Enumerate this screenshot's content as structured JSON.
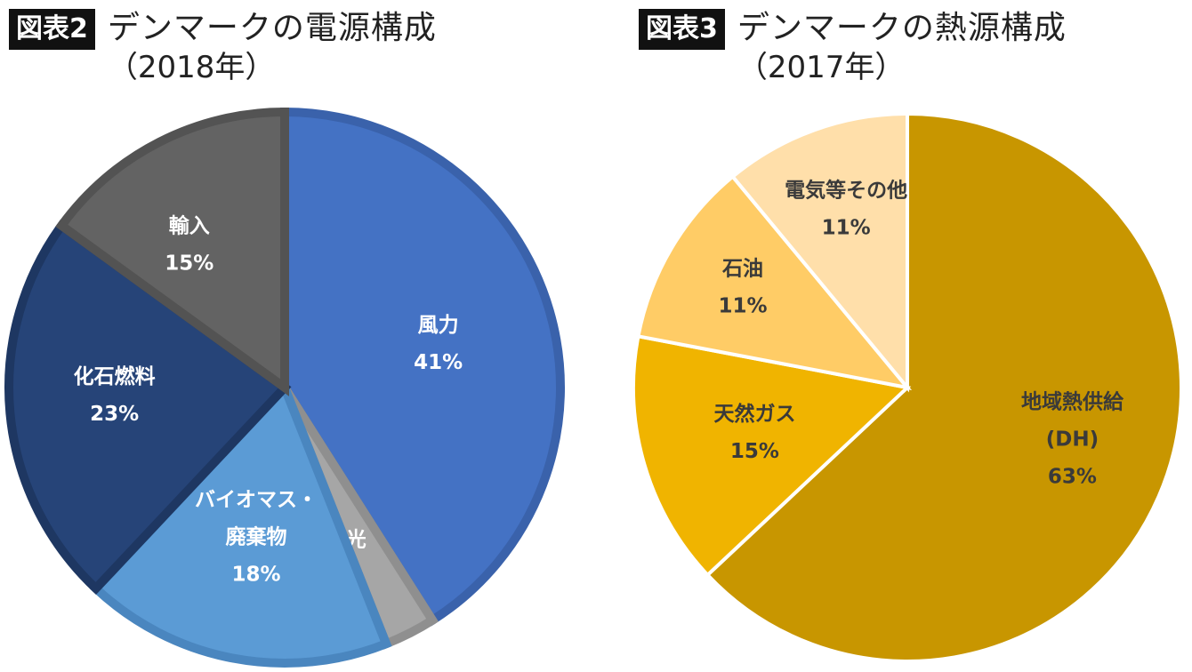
{
  "chart_data": [
    {
      "type": "pie",
      "badge": "図表2",
      "title": "デンマークの電源構成",
      "subtitle": "（2018年）",
      "slices": [
        {
          "label": "風力",
          "value": 41,
          "pct": "41%",
          "color": "#4472c4",
          "edge": "#3a62ab",
          "text_color": "#ffffff"
        },
        {
          "label": "太陽光",
          "value": 3,
          "pct": "3%",
          "color": "#a6a6a6",
          "edge": "#8f8f8f",
          "text_color": "#ffffff"
        },
        {
          "label": "バイオマス・",
          "label2": "廃棄物",
          "value": 18,
          "pct": "18%",
          "color": "#5b9bd5",
          "edge": "#4a86bf",
          "text_color": "#ffffff"
        },
        {
          "label": "化石燃料",
          "value": 23,
          "pct": "23%",
          "color": "#264478",
          "edge": "#1e3762",
          "text_color": "#ffffff"
        },
        {
          "label": "輸入",
          "value": 15,
          "pct": "15%",
          "color": "#636363",
          "edge": "#535353",
          "text_color": "#ffffff"
        }
      ]
    },
    {
      "type": "pie",
      "badge": "図表3",
      "title": "デンマークの熱源構成",
      "subtitle": "（2017年）",
      "slices": [
        {
          "label": "地域熱供給",
          "label2": "(DH)",
          "value": 63,
          "pct": "63%",
          "color": "#c89600",
          "edge": "#ffffff",
          "text_color": "#3a3a3a"
        },
        {
          "label": "天然ガス",
          "value": 15,
          "pct": "15%",
          "color": "#f0b400",
          "edge": "#ffffff",
          "text_color": "#3a3a3a"
        },
        {
          "label": "石油",
          "value": 11,
          "pct": "11%",
          "color": "#ffcc66",
          "edge": "#ffffff",
          "text_color": "#3a3a3a"
        },
        {
          "label": "電気等その他",
          "value": 11,
          "pct": "11%",
          "color": "#ffdfaa",
          "edge": "#ffffff",
          "text_color": "#3a3a3a"
        }
      ]
    }
  ]
}
